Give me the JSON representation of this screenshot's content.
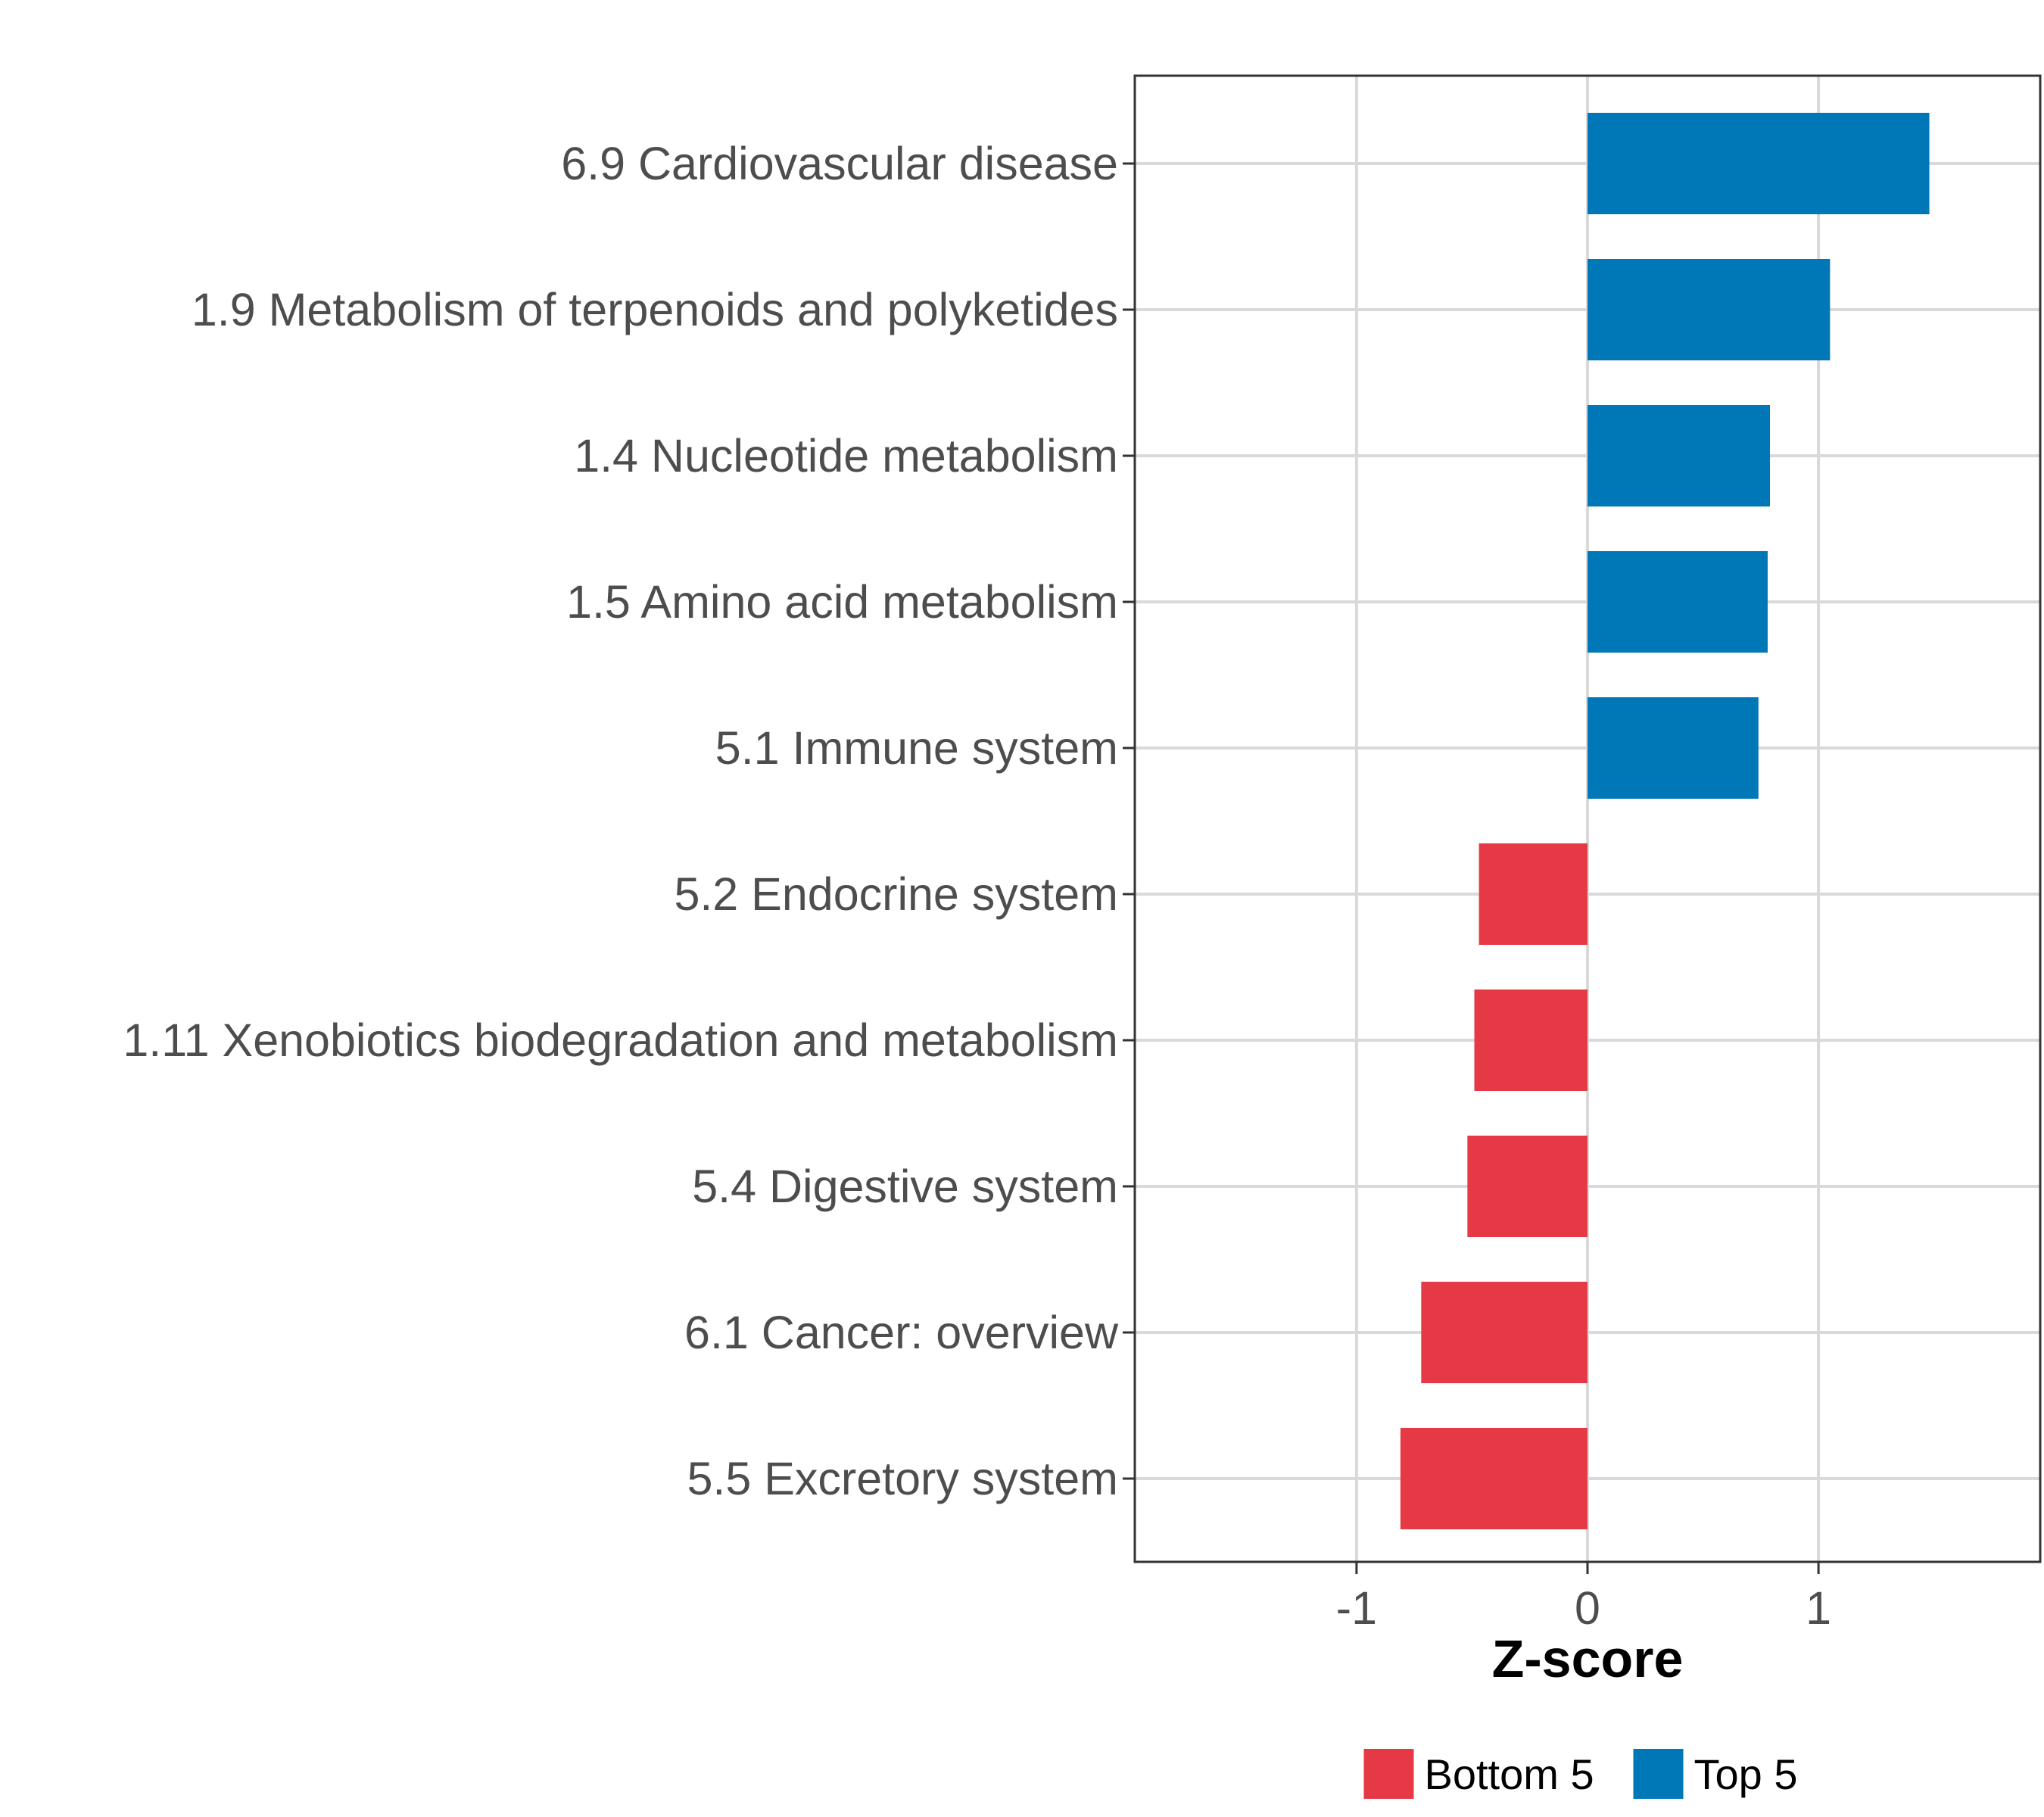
{
  "chart_data": {
    "type": "bar",
    "orientation": "horizontal",
    "categories": [
      "6.9 Cardiovascular disease",
      "1.9 Metabolism of terpenoids and polyketides",
      "1.4 Nucleotide metabolism",
      "1.5 Amino acid metabolism",
      "5.1 Immune system",
      "5.2 Endocrine system",
      "1.11 Xenobiotics biodegradation and metabolism",
      "5.4 Digestive system",
      "6.1 Cancer: overview",
      "5.5 Excretory system"
    ],
    "values": [
      1.48,
      1.05,
      0.79,
      0.78,
      0.74,
      -0.47,
      -0.49,
      -0.52,
      -0.72,
      -0.81
    ],
    "groups": [
      "Top 5",
      "Top 5",
      "Top 5",
      "Top 5",
      "Top 5",
      "Bottom 5",
      "Bottom 5",
      "Bottom 5",
      "Bottom 5",
      "Bottom 5"
    ],
    "xlabel": "Z-score",
    "ylabel": "",
    "xlim": [
      -1.96,
      1.96
    ],
    "xticks": [
      -1,
      0,
      1
    ],
    "xtick_labels": [
      "-1",
      "0",
      "1"
    ],
    "grid": true,
    "legend": {
      "position": "bottom",
      "entries": [
        {
          "label": "Bottom 5",
          "color": "#E63946"
        },
        {
          "label": "Top 5",
          "color": "#0077B6"
        }
      ]
    },
    "colors": {
      "Bottom 5": "#E63946",
      "Top 5": "#0077B6"
    }
  }
}
